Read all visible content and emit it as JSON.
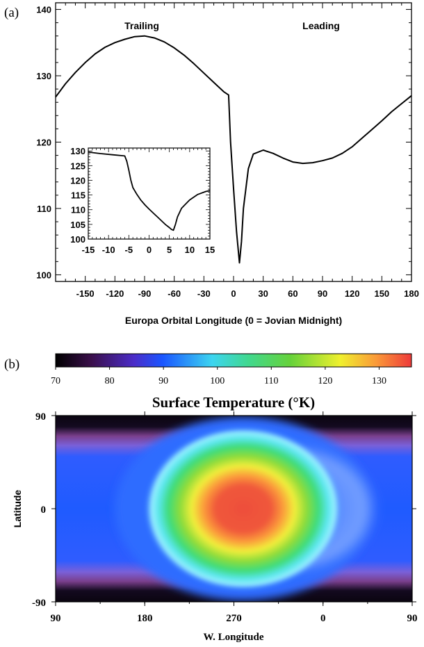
{
  "panel_a": {
    "panel_label": "(a)",
    "chart_data": {
      "type": "line",
      "xlabel": "Europa Orbital Longitude (0 = Jovian Midnight)",
      "ylabel": "",
      "xlim": [
        -180,
        180
      ],
      "ylim": [
        99,
        141
      ],
      "xticks": [
        -150,
        -120,
        -90,
        -60,
        -30,
        0,
        30,
        60,
        90,
        120,
        150,
        180
      ],
      "yticks": [
        100,
        110,
        120,
        130,
        140
      ],
      "annotations": [
        "Trailing",
        "Leading"
      ],
      "series": [
        {
          "x": [
            -180,
            -170,
            -160,
            -150,
            -140,
            -130,
            -120,
            -110,
            -100,
            -90,
            -80,
            -70,
            -60,
            -50,
            -40,
            -30,
            -20,
            -10,
            -5,
            -3,
            0,
            3,
            6,
            8,
            10,
            15,
            20,
            30,
            40,
            50,
            60,
            70,
            80,
            90,
            100,
            110,
            120,
            130,
            140,
            150,
            160,
            170,
            180
          ],
          "y": [
            126.8,
            128.8,
            130.5,
            132.0,
            133.3,
            134.3,
            135.0,
            135.5,
            135.9,
            136.0,
            135.7,
            135.1,
            134.2,
            133.1,
            131.8,
            130.4,
            129.0,
            127.6,
            127.1,
            120.0,
            113.0,
            106.5,
            101.8,
            105.0,
            110.0,
            116.0,
            118.2,
            118.8,
            118.3,
            117.6,
            117.0,
            116.8,
            116.9,
            117.2,
            117.6,
            118.3,
            119.3,
            120.6,
            121.9,
            123.2,
            124.6,
            125.8,
            127.0
          ]
        }
      ]
    },
    "inset": {
      "type": "line",
      "xlim": [
        -15,
        15
      ],
      "ylim": [
        100,
        131
      ],
      "xticks": [
        -15,
        -10,
        -5,
        0,
        5,
        10,
        15
      ],
      "yticks": [
        100,
        105,
        110,
        115,
        120,
        125,
        130
      ],
      "series": [
        {
          "x": [
            -15,
            -12,
            -9,
            -6,
            -5.5,
            -5,
            -4.5,
            -4,
            -3,
            -2,
            -1,
            0,
            1,
            2,
            3,
            4,
            5,
            5.5,
            6,
            6.5,
            7,
            8,
            10,
            12,
            14,
            15
          ],
          "y": [
            129.6,
            129.1,
            128.7,
            128.3,
            126.5,
            123.5,
            120.0,
            117.5,
            115.2,
            113.2,
            111.6,
            110.2,
            108.9,
            107.6,
            106.3,
            105.0,
            103.9,
            103.3,
            103.0,
            105.0,
            107.5,
            110.5,
            113.3,
            115.2,
            116.2,
            116.5
          ]
        }
      ]
    }
  },
  "panel_b": {
    "panel_label": "(b)",
    "title": "Surface Temperature (°K)",
    "colorbar": {
      "ticks": [
        70,
        80,
        90,
        100,
        110,
        120,
        130
      ],
      "range": [
        70,
        136
      ]
    },
    "chart_data": {
      "type": "heatmap",
      "xlabel": "W. Longitude",
      "ylabel": "Latitude",
      "xticks": [
        "90",
        "180",
        "270",
        "0",
        "90"
      ],
      "yticks": [
        "90",
        "0",
        "-90"
      ],
      "value_range": [
        70,
        136
      ],
      "peak": {
        "w_longitude": 270,
        "latitude": 0,
        "value": 134
      }
    }
  },
  "colors": {
    "axis": "#000000",
    "line": "#000000",
    "background": "#ffffff"
  }
}
